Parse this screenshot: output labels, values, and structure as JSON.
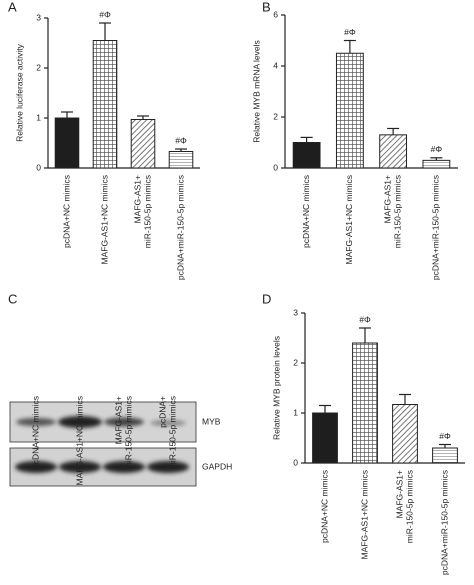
{
  "chart_data": [
    {
      "type": "bar",
      "label": "A",
      "y_label": "Relative luciferase activity",
      "categories": [
        [
          "pcDNA+NC mimics"
        ],
        [
          "MAFG-AS1+NC mimics"
        ],
        [
          "MAFG-AS1+",
          "miR-150-5p mimics"
        ],
        [
          "pcDNA+miR-150-5p mimics"
        ]
      ],
      "values": [
        1.0,
        2.55,
        0.97,
        0.33
      ],
      "errors": [
        0.12,
        0.35,
        0.07,
        0.05
      ],
      "annotations": [
        null,
        "#Φ",
        null,
        "#Φ"
      ],
      "ylim": [
        0,
        3
      ],
      "yticks": [
        0,
        1,
        2,
        3
      ]
    },
    {
      "type": "bar",
      "label": "B",
      "y_label": "Relative MYB mRNA levels",
      "categories": [
        [
          "pcDNA+NC mimics"
        ],
        [
          "MAFG-AS1+NC mimics"
        ],
        [
          "MAFG-AS1+",
          "miR-150-5p mimics"
        ],
        [
          "pcDNA+miR-150-5p mimics"
        ]
      ],
      "values": [
        1.0,
        4.5,
        1.3,
        0.3
      ],
      "errors": [
        0.2,
        0.5,
        0.25,
        0.1
      ],
      "annotations": [
        null,
        "#Φ",
        null,
        "#Φ"
      ],
      "ylim": [
        0,
        6
      ],
      "yticks": [
        0,
        2,
        4,
        6
      ]
    },
    {
      "type": "bar",
      "label": "D",
      "y_label": "Relative MYB protein levels",
      "categories": [
        [
          "pcDNA+NC mimics"
        ],
        [
          "MAFG-AS1+NC mimics"
        ],
        [
          "MAFG-AS1+",
          "miR-150-5p mimics"
        ],
        [
          "pcDNA+miR-150-5p mimics"
        ]
      ],
      "values": [
        1.0,
        2.4,
        1.17,
        0.3
      ],
      "errors": [
        0.15,
        0.3,
        0.2,
        0.07
      ],
      "annotations": [
        null,
        "#Φ",
        null,
        "#Φ"
      ],
      "ylim": [
        0,
        3
      ],
      "yticks": [
        0,
        1,
        2,
        3
      ]
    }
  ],
  "blot": {
    "label": "C",
    "lanes": [
      [
        "pcDNA+NC mimics"
      ],
      [
        "MAFG-AS1+NC mimics"
      ],
      [
        "MAFG-AS1+",
        "miR-150-5p mimics"
      ],
      [
        "pcDNA+",
        "miR-150-5p mimics"
      ]
    ],
    "bands": [
      "MYB",
      "GAPDH"
    ]
  }
}
